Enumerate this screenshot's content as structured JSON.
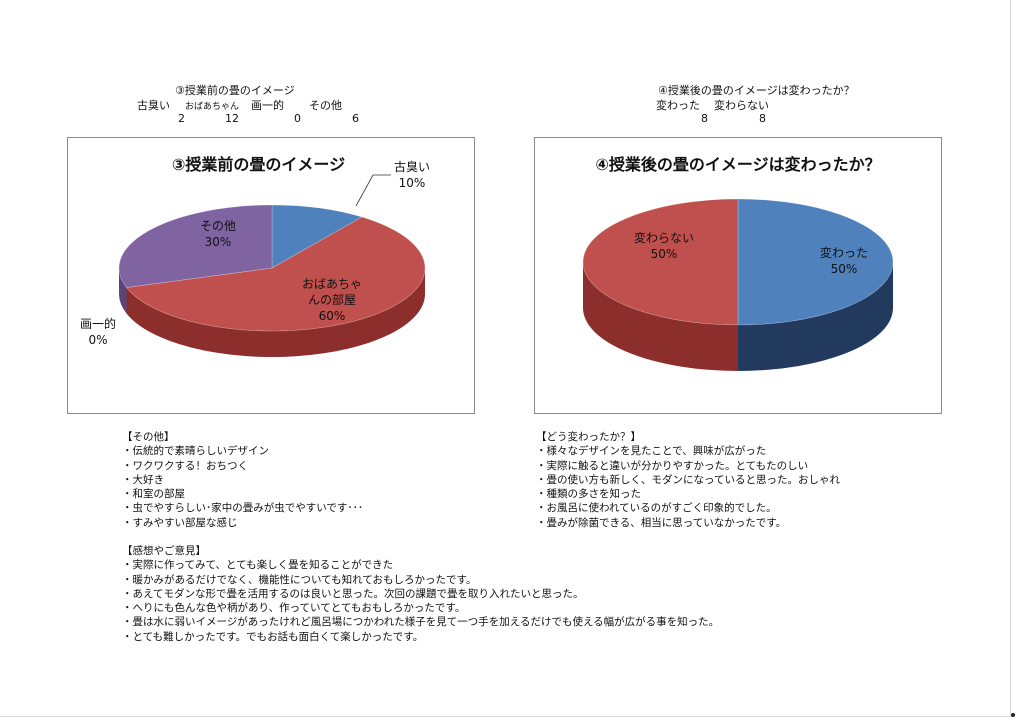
{
  "table_before": {
    "title": "③授業前の畳のイメージ",
    "headers": [
      "古臭い",
      "おばあちゃん",
      "画一的",
      "その他"
    ],
    "values": [
      "2",
      "12",
      "0",
      "6"
    ]
  },
  "table_after": {
    "title": "④授業後の畳のイメージは変わったか？",
    "headers": [
      "変わった",
      "変わらない"
    ],
    "values": [
      "8",
      "8"
    ]
  },
  "chart_data": [
    {
      "type": "pie",
      "title": "③授業前の畳のイメージ",
      "style": "3d",
      "slices": [
        {
          "label": "古臭い",
          "value": 2,
          "percent": "10%",
          "color": "#4f81bd",
          "side": "#2c4d75"
        },
        {
          "label": "おばあちゃんの部屋",
          "label_lines": [
            "おばあちゃ",
            "んの部屋"
          ],
          "value": 12,
          "percent": "60%",
          "color": "#c0504d",
          "side": "#8c2f2c"
        },
        {
          "label": "画一的",
          "value": 0,
          "percent": "0%",
          "color": "#9bbb59",
          "side": "#6b8a35"
        },
        {
          "label": "その他",
          "value": 6,
          "percent": "30%",
          "color": "#8064a2",
          "side": "#5a4478"
        }
      ]
    },
    {
      "type": "pie",
      "title": "④授業後の畳のイメージは変わったか？",
      "style": "3d",
      "slices": [
        {
          "label": "変わった",
          "value": 8,
          "percent": "50%",
          "color": "#4f81bd",
          "side": "#213a5e"
        },
        {
          "label": "変わらない",
          "value": 8,
          "percent": "50%",
          "color": "#c0504d",
          "side": "#8c2f2c"
        }
      ]
    }
  ],
  "notes_other": {
    "heading": "【その他】",
    "items": [
      "・伝統的で素晴らしいデザイン",
      "・ワクワクする！おちつく",
      "・大好き",
      "・和室の部屋",
      "・虫でやすらしい･家中の畳みが虫でやすいです･･･",
      "・すみやすい部屋な感じ"
    ]
  },
  "notes_changed": {
    "heading": "【どう変わったか？】",
    "items": [
      "・様々なデザインを見たことで、興味が広がった",
      "・実際に触ると違いが分かりやすかった。とてもたのしい",
      "・畳の使い方も新しく、モダンになっていると思った。おしゃれ",
      "・種類の多さを知った",
      "・お風呂に使われているのがすごく印象的でした。",
      "・畳みが除菌できる、相当に思っていなかったです。"
    ]
  },
  "notes_impressions": {
    "heading": "【感想やご意見】",
    "items": [
      "・実際に作ってみて、とても楽しく畳を知ることができた",
      "・暖かみがあるだけでなく、機能性についても知れておもしろかったです。",
      "・あえてモダンな形で畳を活用するのは良いと思った。次回の課題で畳を取り入れたいと思った。",
      "・へりにも色んな色や柄があり、作っていてとてもおもしろかったです。",
      "・畳は水に弱いイメージがあったけれど風呂場につかわれた様子を見て一つ手を加えるだけでも使える幅が広がる事を知った。",
      "・とても難しかったです。でもお話も面白くて楽しかったです。"
    ]
  }
}
